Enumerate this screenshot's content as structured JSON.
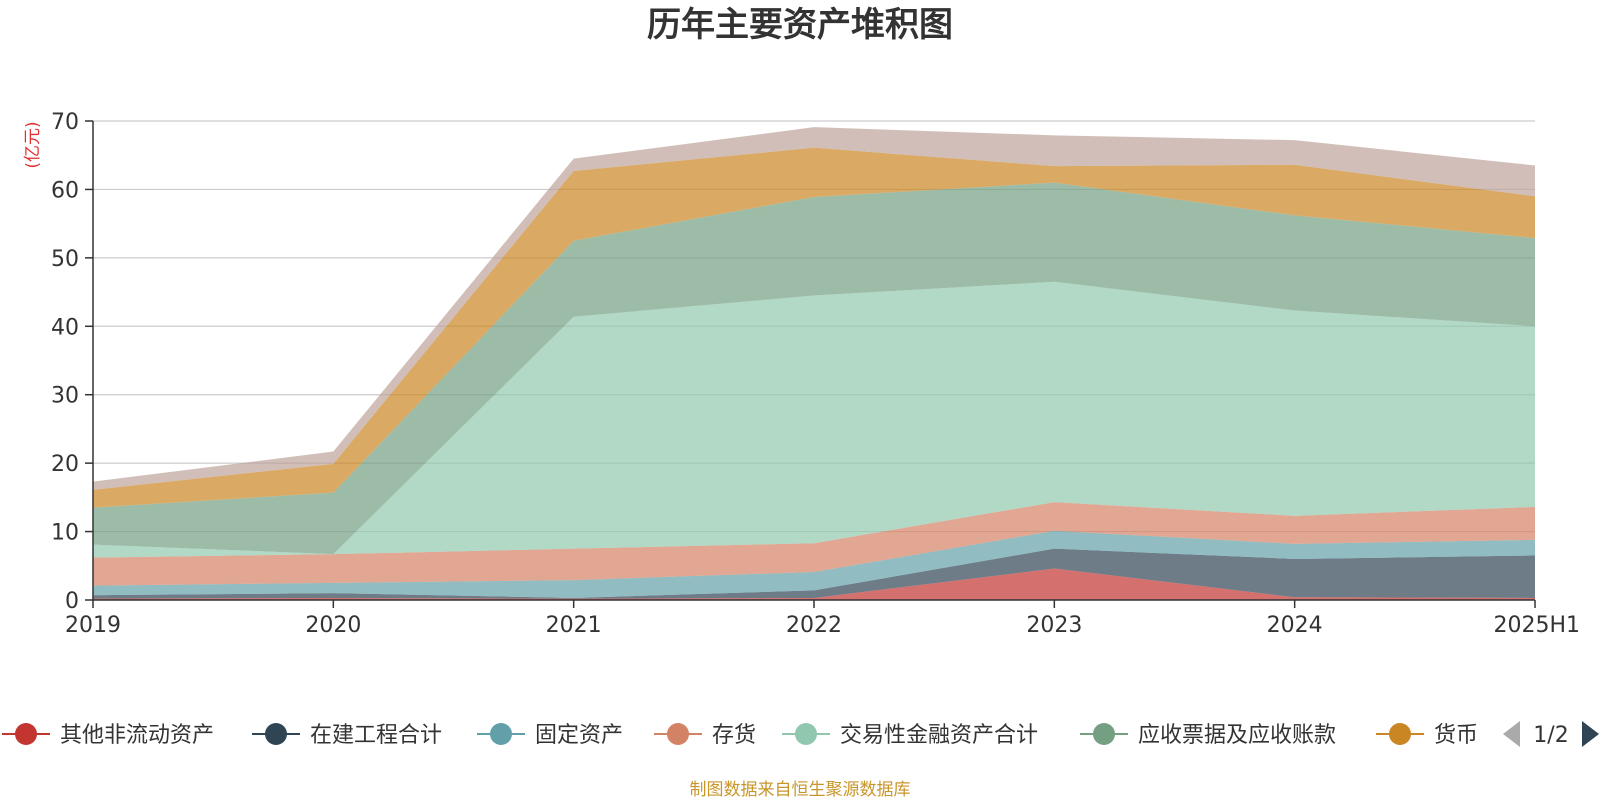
{
  "chart_data": {
    "type": "area",
    "stacked": true,
    "title": "历年主要资产堆积图",
    "unit_label": "(亿元)",
    "categories": [
      "2019",
      "2020",
      "2021",
      "2022",
      "2023",
      "2024",
      "2025H1"
    ],
    "ylim": [
      0,
      70
    ],
    "yticks": [
      0,
      10,
      20,
      30,
      40,
      50,
      60,
      70
    ],
    "grid": true,
    "series": [
      {
        "name": "其他非流动资产",
        "color": "#c23531",
        "values": [
          0.2,
          0.3,
          0.2,
          0.3,
          4.6,
          0.4,
          0.3
        ]
      },
      {
        "name": "在建工程合计",
        "color": "#2f4554",
        "values": [
          0.5,
          0.7,
          0.1,
          1.1,
          2.9,
          5.6,
          6.2
        ]
      },
      {
        "name": "固定资产",
        "color": "#61a0a8",
        "values": [
          1.4,
          1.5,
          2.6,
          2.7,
          2.6,
          2.2,
          2.3
        ]
      },
      {
        "name": "存货",
        "color": "#d48265",
        "values": [
          4.1,
          4.2,
          4.6,
          4.2,
          4.2,
          4.1,
          4.8
        ]
      },
      {
        "name": "交易性金融资产合计",
        "color": "#91c7ae",
        "values": [
          1.9,
          0.0,
          33.9,
          36.2,
          32.2,
          30.0,
          26.4
        ]
      },
      {
        "name": "应收票据及应收账款",
        "color": "#749f83",
        "values": [
          5.4,
          9.0,
          11.1,
          14.4,
          14.5,
          13.9,
          12.9
        ]
      },
      {
        "name": "货币",
        "color": "#ca8622",
        "values": [
          2.6,
          4.2,
          10.2,
          7.2,
          2.4,
          7.4,
          6.1
        ]
      },
      {
        "name": "",
        "color": "#bda29a",
        "values": [
          1.2,
          1.8,
          1.8,
          3.0,
          4.5,
          3.6,
          4.5
        ]
      }
    ],
    "legend": {
      "position": "bottom",
      "page": "1/2"
    },
    "source_note": "制图数据来自恒生聚源数据库"
  }
}
